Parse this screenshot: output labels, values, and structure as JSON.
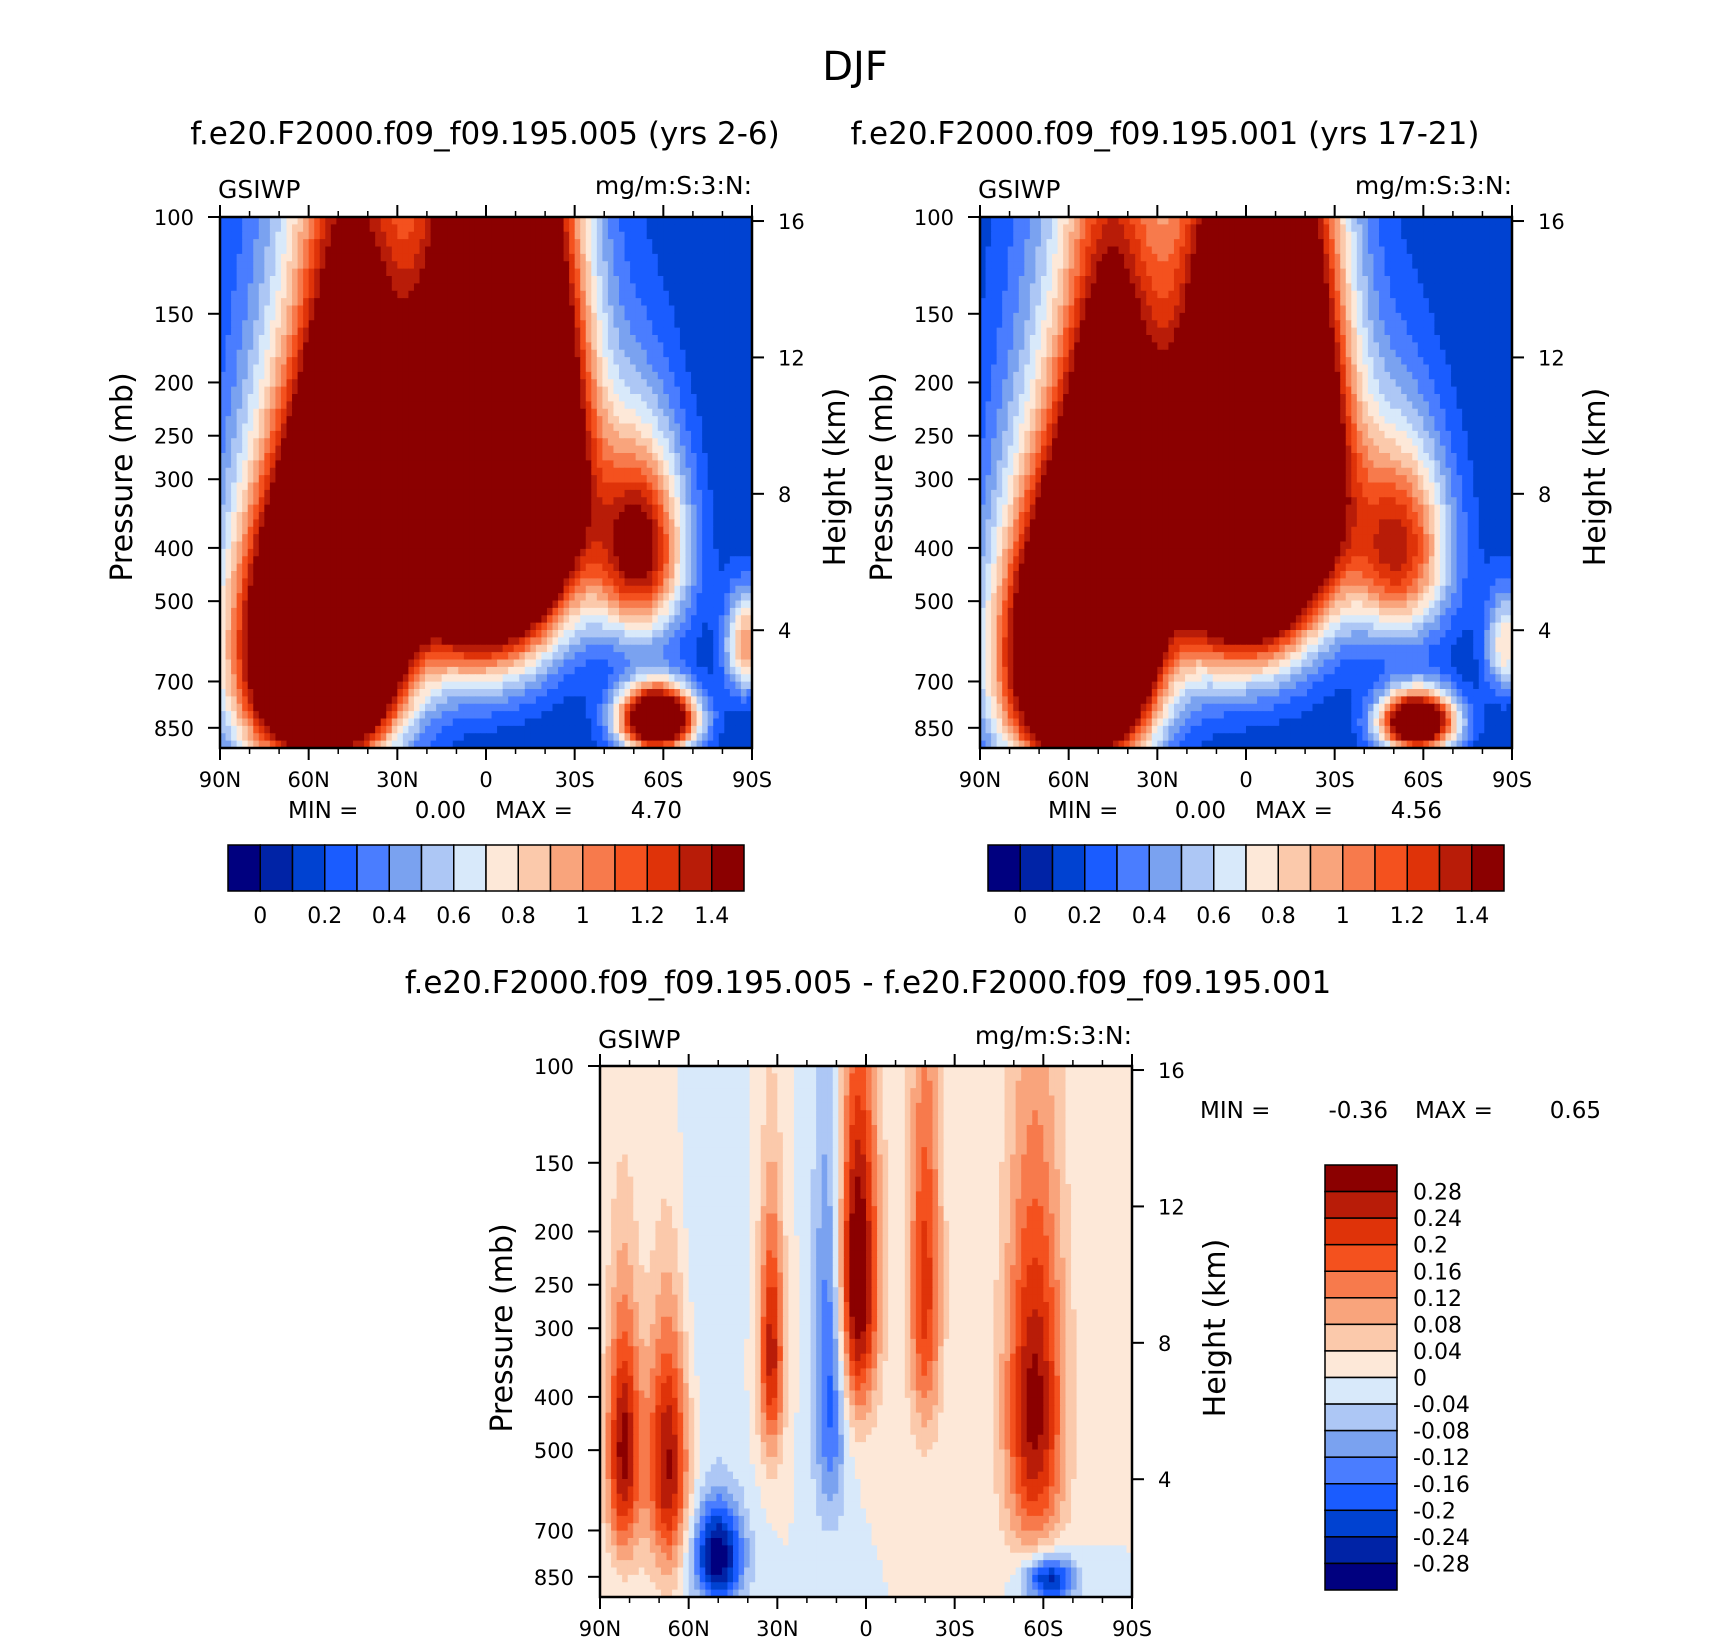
{
  "page_title": "DJF",
  "colors": {
    "seq": [
      "#00007f",
      "#0023a6",
      "#0042d1",
      "#1a5cff",
      "#4a7dff",
      "#7aa2f0",
      "#adc7f5",
      "#d8e9fa",
      "#fde8d8",
      "#fbc9ab",
      "#f9a47c",
      "#f77a4c",
      "#f4511e",
      "#df3309",
      "#b81c08",
      "#8b0000"
    ],
    "diff": [
      "#00007f",
      "#0023a6",
      "#0042d1",
      "#1a5cff",
      "#4a7dff",
      "#7aa2f0",
      "#adc7f5",
      "#d8e9fa",
      "#fde8d8",
      "#fbc9ab",
      "#f9a47c",
      "#f77a4c",
      "#f4511e",
      "#df3309",
      "#b81c08",
      "#8b0000"
    ]
  },
  "chart_data": [
    {
      "type": "heatmap",
      "id": "p1",
      "title": "f.e20.F2000.f09_f09.195.005 (yrs 2-6)",
      "variable": "GSIWP",
      "units": "mg/m:S:3:N:",
      "xlabel": "",
      "ylabel": "Pressure (mb)",
      "y2label": "Height (km)",
      "xticklabels": [
        "90N",
        "60N",
        "30N",
        "0",
        "30S",
        "60S",
        "90S"
      ],
      "xticks": [
        90,
        60,
        30,
        0,
        -30,
        -60,
        -90
      ],
      "yticklabels": [
        "100",
        "150",
        "200",
        "250",
        "300",
        "400",
        "500",
        "700",
        "850"
      ],
      "yticks": [
        100,
        150,
        200,
        250,
        300,
        400,
        500,
        700,
        850
      ],
      "y2ticklabels": [
        "16",
        "12",
        "8",
        "4"
      ],
      "y2ticks": [
        16,
        12,
        8,
        4
      ],
      "ylim": [
        100,
        925
      ],
      "xlim": [
        90,
        -90
      ],
      "min_label": "MIN =",
      "min_value": "0.00",
      "max_label": "MAX =",
      "max_value": "4.70",
      "colorbar_ticklabels": [
        "0",
        "0.2",
        "0.4",
        "0.6",
        "0.8",
        "1",
        "1.2",
        "1.4"
      ],
      "colorbar_levels": [
        -0.1,
        0,
        0.1,
        0.2,
        0.3,
        0.4,
        0.5,
        0.6,
        0.7,
        0.8,
        0.9,
        1.0,
        1.1,
        1.2,
        1.3,
        1.4
      ],
      "features": [
        {
          "lat": 58,
          "p": 600,
          "sx": 18,
          "sy": 260,
          "amp": 3.0
        },
        {
          "lat": 45,
          "p": 400,
          "sx": 12,
          "sy": 240,
          "amp": 2.0
        },
        {
          "lat": 2,
          "p": 330,
          "sx": 18,
          "sy": 200,
          "amp": 3.2
        },
        {
          "lat": -15,
          "p": 260,
          "sx": 14,
          "sy": 150,
          "amp": 1.8
        },
        {
          "lat": -52,
          "p": 400,
          "sx": 11,
          "sy": 120,
          "amp": 1.4
        },
        {
          "lat": -58,
          "p": 820,
          "sx": 9,
          "sy": 80,
          "amp": 2.2
        },
        {
          "lat": -88,
          "p": 600,
          "sx": 5,
          "sy": 90,
          "amp": 0.9
        }
      ]
    },
    {
      "type": "heatmap",
      "id": "p2",
      "title": "f.e20.F2000.f09_f09.195.001 (yrs 17-21)",
      "variable": "GSIWP",
      "units": "mg/m:S:3:N:",
      "xlabel": "",
      "ylabel": "Pressure (mb)",
      "y2label": "Height (km)",
      "xticklabels": [
        "90N",
        "60N",
        "30N",
        "0",
        "30S",
        "60S",
        "90S"
      ],
      "xticks": [
        90,
        60,
        30,
        0,
        -30,
        -60,
        -90
      ],
      "yticklabels": [
        "100",
        "150",
        "200",
        "250",
        "300",
        "400",
        "500",
        "700",
        "850"
      ],
      "yticks": [
        100,
        150,
        200,
        250,
        300,
        400,
        500,
        700,
        850
      ],
      "y2ticklabels": [
        "16",
        "12",
        "8",
        "4"
      ],
      "y2ticks": [
        16,
        12,
        8,
        4
      ],
      "ylim": [
        100,
        925
      ],
      "xlim": [
        90,
        -90
      ],
      "min_label": "MIN =",
      "min_value": "0.00",
      "max_label": "MAX =",
      "max_value": "4.56",
      "colorbar_ticklabels": [
        "0",
        "0.2",
        "0.4",
        "0.6",
        "0.8",
        "1",
        "1.2",
        "1.4"
      ],
      "colorbar_levels": [
        -0.1,
        0,
        0.1,
        0.2,
        0.3,
        0.4,
        0.5,
        0.6,
        0.7,
        0.8,
        0.9,
        1.0,
        1.1,
        1.2,
        1.3,
        1.4
      ],
      "features": [
        {
          "lat": 58,
          "p": 620,
          "sx": 17,
          "sy": 260,
          "amp": 2.9
        },
        {
          "lat": 45,
          "p": 400,
          "sx": 11,
          "sy": 230,
          "amp": 1.9
        },
        {
          "lat": 2,
          "p": 330,
          "sx": 18,
          "sy": 200,
          "amp": 3.0
        },
        {
          "lat": -15,
          "p": 260,
          "sx": 14,
          "sy": 150,
          "amp": 1.7
        },
        {
          "lat": -52,
          "p": 400,
          "sx": 12,
          "sy": 120,
          "amp": 1.2
        },
        {
          "lat": -58,
          "p": 830,
          "sx": 9,
          "sy": 75,
          "amp": 2.0
        },
        {
          "lat": -88,
          "p": 600,
          "sx": 5,
          "sy": 90,
          "amp": 0.7
        }
      ]
    },
    {
      "type": "heatmap",
      "id": "p3",
      "title": "f.e20.F2000.f09_f09.195.005 - f.e20.F2000.f09_f09.195.001",
      "variable": "GSIWP",
      "units": "mg/m:S:3:N:",
      "xlabel": "",
      "ylabel": "Pressure (mb)",
      "y2label": "Height (km)",
      "xticklabels": [
        "90N",
        "60N",
        "30N",
        "0",
        "30S",
        "60S",
        "90S"
      ],
      "xticks": [
        90,
        60,
        30,
        0,
        -30,
        -60,
        -90
      ],
      "yticklabels": [
        "100",
        "150",
        "200",
        "250",
        "300",
        "400",
        "500",
        "700",
        "850"
      ],
      "yticks": [
        100,
        150,
        200,
        250,
        300,
        400,
        500,
        700,
        850
      ],
      "y2ticklabels": [
        "16",
        "12",
        "8",
        "4"
      ],
      "y2ticks": [
        16,
        12,
        8,
        4
      ],
      "ylim": [
        100,
        925
      ],
      "xlim": [
        90,
        -90
      ],
      "min_label": "MIN =",
      "min_value": "-0.36",
      "max_label": "MAX =",
      "max_value": "0.65",
      "colorbar_ticklabels": [
        "0.28",
        "0.24",
        "0.2",
        "0.16",
        "0.12",
        "0.08",
        "0.04",
        "0",
        "-0.04",
        "-0.08",
        "-0.12",
        "-0.16",
        "-0.2",
        "-0.24",
        "-0.28"
      ],
      "colorbar_levels": [
        -0.28,
        -0.24,
        -0.2,
        -0.16,
        -0.12,
        -0.08,
        -0.04,
        0,
        0.04,
        0.08,
        0.12,
        0.16,
        0.2,
        0.24,
        0.28
      ],
      "features": [
        {
          "lat": 82,
          "p": 500,
          "sx": 4,
          "sy": 180,
          "amp": 0.3
        },
        {
          "lat": 67,
          "p": 520,
          "sx": 5,
          "sy": 200,
          "amp": 0.3
        },
        {
          "lat": 50,
          "p": 780,
          "sx": 6,
          "sy": 120,
          "amp": -0.32
        },
        {
          "lat": 32,
          "p": 330,
          "sx": 3,
          "sy": 120,
          "amp": 0.26
        },
        {
          "lat": 12,
          "p": 350,
          "sx": 4,
          "sy": 200,
          "amp": -0.2
        },
        {
          "lat": 3,
          "p": 240,
          "sx": 5,
          "sy": 120,
          "amp": 0.36
        },
        {
          "lat": -20,
          "p": 250,
          "sx": 4,
          "sy": 140,
          "amp": 0.22
        },
        {
          "lat": -57,
          "p": 420,
          "sx": 7,
          "sy": 220,
          "amp": 0.3
        },
        {
          "lat": -62,
          "p": 860,
          "sx": 6,
          "sy": 60,
          "amp": -0.28
        },
        {
          "lat": 60,
          "p": 250,
          "sx": 10,
          "sy": 200,
          "amp": -0.04
        }
      ]
    }
  ]
}
